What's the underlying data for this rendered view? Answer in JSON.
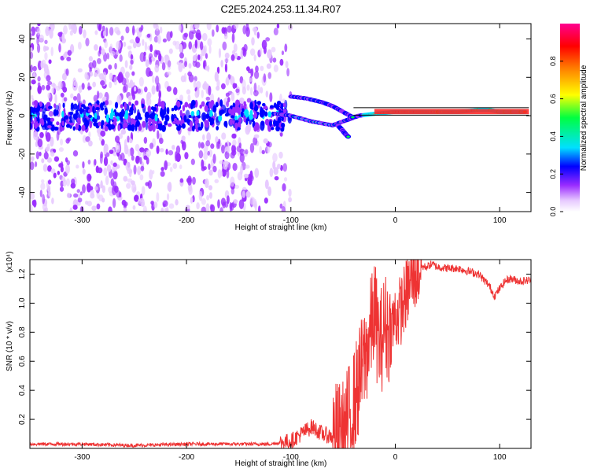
{
  "chart_data": [
    {
      "type": "heatmap",
      "title": "C2E5.2024.253.11.34.R07",
      "xlabel": "Height of straight line (km)",
      "ylabel": "Frequency (Hz)",
      "xlim": [
        -350,
        130
      ],
      "ylim": [
        -50,
        48
      ],
      "xticks": [
        -300,
        -200,
        -100,
        0,
        100
      ],
      "yticks": [
        -40,
        -20,
        0,
        20,
        40
      ],
      "colorbar": {
        "label": "Normalized spectral amplitude",
        "range": [
          0,
          1
        ],
        "ticks": [
          "0.0",
          "0.2",
          "0.4",
          "0.6",
          "0.8"
        ],
        "colors": [
          "#ffffff",
          "#e6c8ff",
          "#9a2cff",
          "#0000ff",
          "#00e0ff",
          "#00ff40",
          "#ffff00",
          "#ff8000",
          "#ff0000",
          "#ff0090"
        ]
      },
      "series": [
        {
          "x": [
            -115,
            -100,
            -80,
            -60,
            -45,
            -35,
            -20,
            0,
            20,
            40,
            60,
            80,
            90,
            100,
            110,
            125
          ],
          "y": [
            1,
            0,
            -3,
            -5,
            -2,
            0,
            1,
            2,
            2,
            2,
            2,
            3,
            3,
            2,
            2,
            2
          ]
        },
        {
          "x": [
            -100,
            -85,
            -70,
            -60,
            -50,
            -40
          ],
          "y": [
            10,
            9,
            7,
            5,
            2,
            -1
          ]
        },
        {
          "x": [
            -55,
            -50,
            -47,
            -45
          ],
          "y": [
            -5,
            -8,
            -10,
            -11
          ]
        }
      ]
    },
    {
      "type": "line",
      "xlabel": "Height of straight line (km)",
      "ylabel": "SNR (10 * v/v)",
      "ylim_label": "(x10⁴)",
      "xlim": [
        -350,
        130
      ],
      "ylim": [
        0,
        1.3
      ],
      "xticks": [
        -300,
        -200,
        -100,
        0,
        100
      ],
      "yticks": [
        "0.2",
        "0.4",
        "0.6",
        "0.8",
        "1.0",
        "1.2"
      ],
      "color": "#ee3333",
      "x": [
        -350,
        -300,
        -250,
        -200,
        -150,
        -120,
        -100,
        -90,
        -80,
        -70,
        -60,
        -50,
        -45,
        -40,
        -35,
        -30,
        -25,
        -20,
        -15,
        -10,
        -5,
        0,
        5,
        10,
        15,
        20,
        25,
        30,
        35,
        40,
        50,
        60,
        70,
        80,
        90,
        95,
        100,
        105,
        110,
        120,
        130
      ],
      "y": [
        0.03,
        0.03,
        0.02,
        0.03,
        0.03,
        0.03,
        0.05,
        0.1,
        0.15,
        0.1,
        0.08,
        0.1,
        0.2,
        0.3,
        0.45,
        0.6,
        0.75,
        0.95,
        0.7,
        0.85,
        0.8,
        0.9,
        0.95,
        1.05,
        1.15,
        1.2,
        1.25,
        1.25,
        1.27,
        1.25,
        1.24,
        1.24,
        1.22,
        1.2,
        1.12,
        1.05,
        1.1,
        1.15,
        1.17,
        1.15,
        1.16
      ]
    }
  ]
}
